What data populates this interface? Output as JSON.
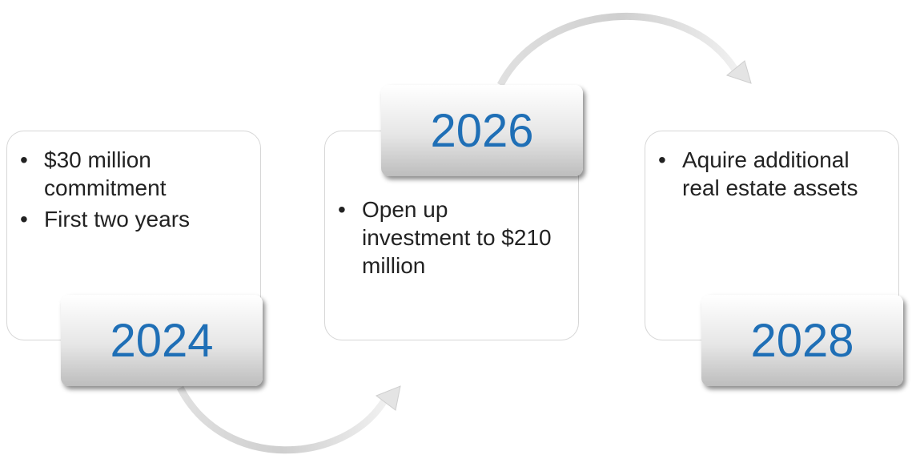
{
  "stages": [
    {
      "year": "2024",
      "bullets": [
        "$30 million commitment",
        "First two years"
      ]
    },
    {
      "year": "2026",
      "bullets": [
        "Open up investment to $210 million"
      ]
    },
    {
      "year": "2028",
      "bullets": [
        "Aquire additional real estate assets"
      ]
    }
  ]
}
